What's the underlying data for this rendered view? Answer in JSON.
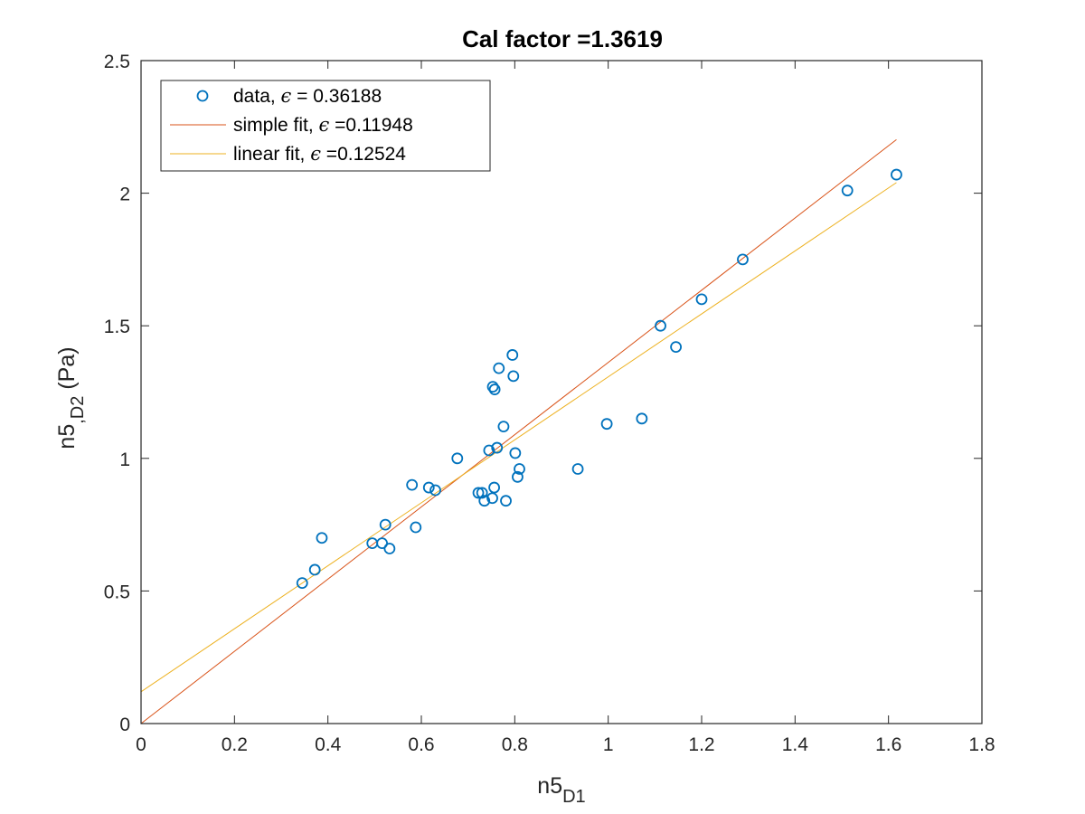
{
  "chart_data": {
    "type": "scatter",
    "title": "Cal factor =1.3619",
    "xlabel": {
      "base": "n5",
      "sub": "D1"
    },
    "ylabel": {
      "base": "n5",
      "sub": ",D2",
      "suffix": " (Pa)"
    },
    "xlim": [
      0,
      1.8
    ],
    "ylim": [
      0,
      2.5
    ],
    "xticks": [
      0,
      0.2,
      0.4,
      0.6,
      0.8,
      1,
      1.2,
      1.4,
      1.6,
      1.8
    ],
    "xtick_labels": [
      "0",
      "0.2",
      "0.4",
      "0.6",
      "0.8",
      "1",
      "1.2",
      "1.4",
      "1.6",
      "1.8"
    ],
    "yticks": [
      0,
      0.5,
      1,
      1.5,
      2,
      2.5
    ],
    "ytick_labels": [
      "0",
      "0.5",
      "1",
      "1.5",
      "2",
      "2.5"
    ],
    "grid": false,
    "legend_position": "top-left",
    "series": [
      {
        "name": "data",
        "legend": {
          "prefix": "data, ",
          "eps": "ϵ",
          "suffix": " = 0.36188"
        },
        "kind": "scatter",
        "marker": "circle",
        "color": "#0072BD",
        "x": [
          0.345,
          0.372,
          0.387,
          0.495,
          0.516,
          0.523,
          0.532,
          0.58,
          0.588,
          0.616,
          0.63,
          0.677,
          0.722,
          0.73,
          0.735,
          0.745,
          0.752,
          0.753,
          0.756,
          0.757,
          0.762,
          0.766,
          0.776,
          0.781,
          0.795,
          0.797,
          0.801,
          0.806,
          0.81,
          0.935,
          0.997,
          1.072,
          1.112,
          1.145,
          1.2,
          1.288,
          1.512,
          1.617
        ],
        "y": [
          0.53,
          0.58,
          0.7,
          0.68,
          0.68,
          0.75,
          0.66,
          0.9,
          0.74,
          0.89,
          0.88,
          1.0,
          0.87,
          0.87,
          0.84,
          1.03,
          0.85,
          1.27,
          0.89,
          1.26,
          1.04,
          1.34,
          1.12,
          0.84,
          1.39,
          1.31,
          1.02,
          0.93,
          0.96,
          0.96,
          1.13,
          1.15,
          1.5,
          1.42,
          1.6,
          1.75,
          2.01,
          2.07
        ]
      },
      {
        "name": "simple fit",
        "legend": {
          "prefix": "simple fit, ",
          "eps": "ϵ",
          "suffix": " =0.11948"
        },
        "kind": "line",
        "color": "#D95319",
        "x": [
          0,
          1.617
        ],
        "y": [
          0,
          2.202
        ]
      },
      {
        "name": "linear fit",
        "legend": {
          "prefix": "linear fit, ",
          "eps": "ϵ",
          "suffix": " =0.12524"
        },
        "kind": "line",
        "color": "#EDB120",
        "x": [
          0,
          1.617
        ],
        "y": [
          0.12,
          2.04
        ]
      }
    ]
  }
}
